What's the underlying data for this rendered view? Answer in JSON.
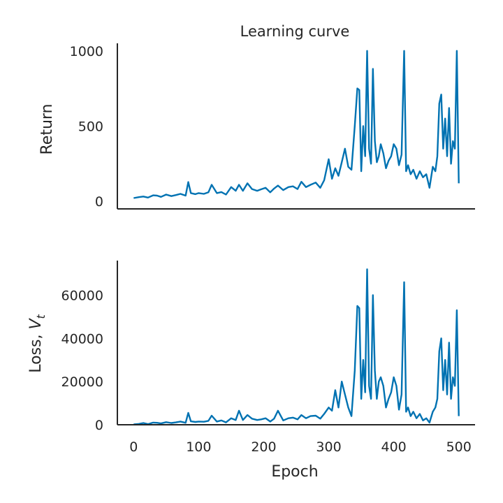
{
  "chart_data": [
    {
      "type": "line",
      "title": "Learning curve",
      "ylabel": "Return",
      "xlabel": "",
      "xlim": [
        -25,
        525
      ],
      "ylim": [
        -50,
        1050
      ],
      "yticks": [
        0,
        500,
        1000
      ],
      "ytick_labels": [
        "0",
        "500",
        "1000"
      ],
      "grid": false,
      "series": [
        {
          "color": "#0072b2",
          "x": [
            0,
            8,
            15,
            22,
            30,
            36,
            42,
            50,
            58,
            65,
            72,
            80,
            84,
            88,
            95,
            100,
            108,
            115,
            120,
            128,
            135,
            142,
            150,
            157,
            162,
            168,
            175,
            182,
            190,
            196,
            203,
            210,
            216,
            222,
            230,
            238,
            245,
            252,
            258,
            265,
            272,
            280,
            287,
            293,
            300,
            305,
            310,
            315,
            320,
            325,
            330,
            335,
            340,
            344,
            347,
            350,
            353,
            356,
            359,
            362,
            365,
            368,
            371,
            374,
            377,
            380,
            384,
            388,
            392,
            396,
            400,
            404,
            408,
            412,
            416,
            419,
            422,
            426,
            430,
            435,
            440,
            445,
            450,
            455,
            460,
            464,
            467,
            470,
            473,
            476,
            479,
            482,
            485,
            488,
            491,
            494,
            497,
            500
          ],
          "y": [
            22,
            28,
            32,
            25,
            40,
            38,
            30,
            45,
            35,
            42,
            50,
            38,
            128,
            55,
            48,
            55,
            50,
            60,
            110,
            55,
            62,
            45,
            95,
            70,
            110,
            70,
            120,
            82,
            70,
            80,
            90,
            60,
            85,
            105,
            75,
            95,
            100,
            82,
            130,
            95,
            110,
            125,
            90,
            140,
            280,
            150,
            220,
            170,
            260,
            350,
            230,
            210,
            500,
            750,
            740,
            200,
            500,
            300,
            1000,
            350,
            250,
            880,
            400,
            260,
            300,
            380,
            320,
            220,
            270,
            300,
            380,
            350,
            240,
            310,
            1000,
            200,
            240,
            180,
            210,
            150,
            200,
            160,
            180,
            90,
            230,
            200,
            300,
            650,
            710,
            350,
            550,
            300,
            620,
            250,
            400,
            350,
            1000,
            120
          ]
        }
      ]
    },
    {
      "type": "line",
      "title": "",
      "ylabel_main": "Loss, ",
      "ylabel_sym": "V",
      "ylabel_sub": "t",
      "xlabel": "Epoch",
      "xlim": [
        -25,
        525
      ],
      "ylim": [
        0,
        76000
      ],
      "xticks": [
        0,
        100,
        200,
        300,
        400,
        500
      ],
      "xtick_labels": [
        "0",
        "100",
        "200",
        "300",
        "400",
        "500"
      ],
      "yticks": [
        0,
        20000,
        40000,
        60000
      ],
      "ytick_labels": [
        "0",
        "20000",
        "40000",
        "60000"
      ],
      "grid": false,
      "series": [
        {
          "color": "#0072b2",
          "x": [
            0,
            8,
            15,
            22,
            30,
            36,
            42,
            50,
            58,
            65,
            72,
            80,
            84,
            88,
            95,
            100,
            108,
            115,
            120,
            128,
            135,
            142,
            150,
            157,
            162,
            168,
            175,
            182,
            190,
            196,
            203,
            210,
            216,
            222,
            230,
            238,
            245,
            252,
            258,
            265,
            272,
            280,
            287,
            293,
            300,
            305,
            310,
            315,
            320,
            325,
            330,
            335,
            340,
            344,
            347,
            350,
            353,
            356,
            359,
            362,
            365,
            368,
            371,
            374,
            377,
            380,
            384,
            388,
            392,
            396,
            400,
            404,
            408,
            412,
            416,
            419,
            422,
            426,
            430,
            435,
            440,
            445,
            450,
            455,
            460,
            464,
            467,
            470,
            473,
            476,
            479,
            482,
            485,
            488,
            491,
            494,
            497,
            500
          ],
          "y": [
            200,
            400,
            800,
            300,
            1000,
            900,
            600,
            1200,
            800,
            1100,
            1500,
            900,
            5500,
            1600,
            1300,
            1500,
            1400,
            1800,
            4200,
            1500,
            2000,
            1100,
            3000,
            2200,
            6500,
            2200,
            4500,
            2800,
            2200,
            2500,
            3000,
            1500,
            2800,
            6500,
            2000,
            3000,
            3300,
            2500,
            4500,
            3000,
            4000,
            4200,
            2800,
            5000,
            8000,
            6500,
            16000,
            8000,
            20000,
            14000,
            8000,
            4000,
            25000,
            55000,
            54000,
            12000,
            30000,
            15000,
            72000,
            18000,
            12000,
            60000,
            25000,
            12000,
            20000,
            22000,
            18000,
            8000,
            12000,
            15000,
            22000,
            18000,
            7000,
            14000,
            66000,
            6000,
            8000,
            4000,
            6000,
            3000,
            5000,
            2000,
            3000,
            1000,
            6000,
            8000,
            12000,
            34000,
            40000,
            16000,
            30000,
            14000,
            38000,
            12000,
            22000,
            18000,
            53000,
            4000
          ]
        }
      ]
    }
  ]
}
